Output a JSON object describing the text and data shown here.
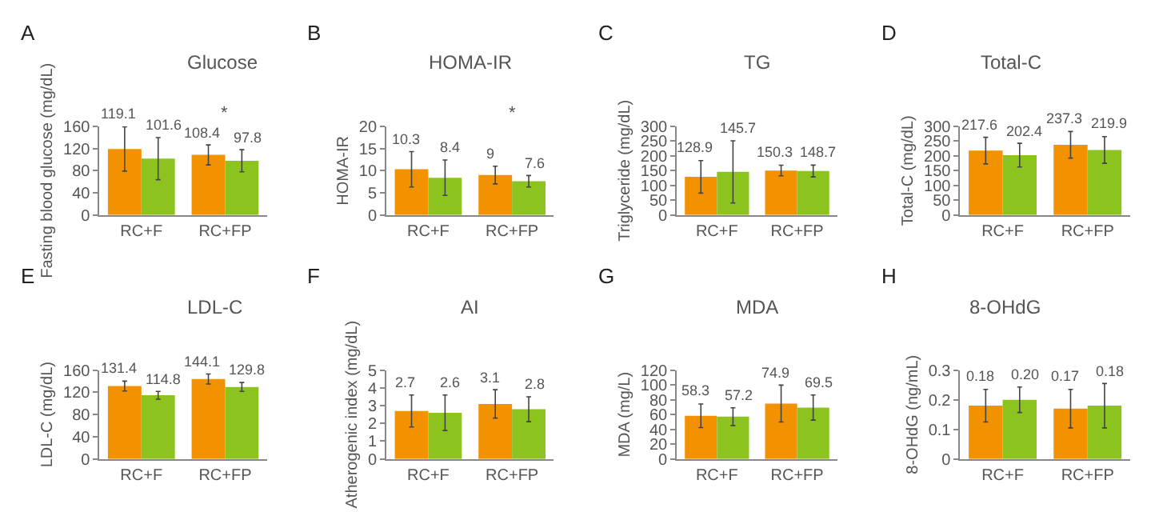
{
  "chart_data": [
    {
      "type": "bar",
      "title": "Glucose",
      "ylabel": "Fasting blood glucose (mg/dL)",
      "categories": [
        "RC+F",
        "RC+FP"
      ],
      "ylim": [
        0,
        160
      ],
      "yticks": [
        0,
        40,
        80,
        120,
        160
      ],
      "annotations": [
        "A",
        "*"
      ],
      "series": [
        {
          "color": "#f39200",
          "values": [
            119.1,
            108.4
          ],
          "errors": [
            40,
            18
          ],
          "value_labels": [
            "119.1",
            "108.4"
          ]
        },
        {
          "color": "#8cc31f",
          "values": [
            101.6,
            97.8
          ],
          "errors": [
            38,
            20
          ],
          "value_labels": [
            "101.6",
            "97.8"
          ]
        }
      ]
    },
    {
      "type": "bar",
      "title": "HOMA-IR",
      "ylabel": "HOMA-IR",
      "categories": [
        "RC+F",
        "RC+FP"
      ],
      "ylim": [
        0,
        20
      ],
      "yticks": [
        0,
        5,
        10,
        15,
        20
      ],
      "annotations": [
        "B",
        "*"
      ],
      "series": [
        {
          "color": "#f39200",
          "values": [
            10.3,
            9
          ],
          "errors": [
            4,
            2
          ],
          "value_labels": [
            "10.3",
            "9"
          ]
        },
        {
          "color": "#8cc31f",
          "values": [
            8.4,
            7.6
          ],
          "errors": [
            4,
            1.3
          ],
          "value_labels": [
            "8.4",
            "7.6"
          ]
        }
      ]
    },
    {
      "type": "bar",
      "title": "TG",
      "ylabel": "Triglyceride (mg/dL)",
      "categories": [
        "RC+F",
        "RC+FP"
      ],
      "ylim": [
        0,
        300
      ],
      "yticks": [
        0,
        50,
        100,
        150,
        200,
        250,
        300
      ],
      "annotations": [
        "C"
      ],
      "series": [
        {
          "color": "#f39200",
          "values": [
            128.9,
            150.3
          ],
          "errors": [
            55,
            18
          ],
          "value_labels": [
            "128.9",
            "150.3"
          ]
        },
        {
          "color": "#8cc31f",
          "values": [
            145.7,
            148.7
          ],
          "errors": [
            105,
            20
          ],
          "value_labels": [
            "145.7",
            "148.7"
          ]
        }
      ]
    },
    {
      "type": "bar",
      "title": "Total-C",
      "ylabel": "Total-C (mg/dL)",
      "categories": [
        "RC+F",
        "RC+FP"
      ],
      "ylim": [
        0,
        300
      ],
      "yticks": [
        0,
        50,
        100,
        150,
        200,
        250,
        300
      ],
      "annotations": [
        "D"
      ],
      "series": [
        {
          "color": "#f39200",
          "values": [
            217.6,
            237.3
          ],
          "errors": [
            45,
            45
          ],
          "value_labels": [
            "217.6",
            "237.3"
          ]
        },
        {
          "color": "#8cc31f",
          "values": [
            202.4,
            219.9
          ],
          "errors": [
            40,
            45
          ],
          "value_labels": [
            "202.4",
            "219.9"
          ]
        }
      ]
    },
    {
      "type": "bar",
      "title": "LDL-C",
      "ylabel": "LDL-C (mg/dL)",
      "categories": [
        "RC+F",
        "RC+FP"
      ],
      "ylim": [
        0,
        160
      ],
      "yticks": [
        0,
        40,
        80,
        120,
        160
      ],
      "annotations": [
        "E"
      ],
      "series": [
        {
          "color": "#f39200",
          "values": [
            131.4,
            144.1
          ],
          "errors": [
            9,
            9
          ],
          "value_labels": [
            "131.4",
            "144.1"
          ]
        },
        {
          "color": "#8cc31f",
          "values": [
            114.8,
            129.8
          ],
          "errors": [
            7,
            8
          ],
          "value_labels": [
            "114.8",
            "129.8"
          ]
        }
      ]
    },
    {
      "type": "bar",
      "title": "AI",
      "ylabel": "Atherogenic index (mg/dL)",
      "categories": [
        "RC+F",
        "RC+FP"
      ],
      "ylim": [
        0,
        5
      ],
      "yticks": [
        0,
        1,
        2,
        3,
        4,
        5
      ],
      "annotations": [
        "F"
      ],
      "series": [
        {
          "color": "#f39200",
          "values": [
            2.7,
            3.1
          ],
          "errors": [
            0.9,
            0.8
          ],
          "value_labels": [
            "2.7",
            "3.1"
          ]
        },
        {
          "color": "#8cc31f",
          "values": [
            2.6,
            2.8
          ],
          "errors": [
            1.0,
            0.7
          ],
          "value_labels": [
            "2.6",
            "2.8"
          ]
        }
      ]
    },
    {
      "type": "bar",
      "title": "MDA",
      "ylabel": "MDA (mg/L)",
      "categories": [
        "RC+F",
        "RC+FP"
      ],
      "ylim": [
        0,
        120
      ],
      "yticks": [
        0,
        20,
        40,
        60,
        80,
        100,
        120
      ],
      "annotations": [
        "G"
      ],
      "series": [
        {
          "color": "#f39200",
          "values": [
            58.3,
            74.9
          ],
          "errors": [
            16,
            25
          ],
          "value_labels": [
            "58.3",
            "74.9"
          ]
        },
        {
          "color": "#8cc31f",
          "values": [
            57.2,
            69.5
          ],
          "errors": [
            12,
            17
          ],
          "value_labels": [
            "57.2",
            "69.5"
          ]
        }
      ]
    },
    {
      "type": "bar",
      "title": "8-OHdG",
      "ylabel": "8-OHdG (ng/mL)",
      "categories": [
        "RC+F",
        "RC+FP"
      ],
      "ylim": [
        0,
        0.3
      ],
      "yticks": [
        0,
        0.1,
        0.2,
        0.3
      ],
      "annotations": [
        "H"
      ],
      "series": [
        {
          "color": "#f39200",
          "values": [
            0.18,
            0.17
          ],
          "errors": [
            0.055,
            0.065
          ],
          "value_labels": [
            "0.18",
            "0.17"
          ]
        },
        {
          "color": "#8cc31f",
          "values": [
            0.2,
            0.18
          ],
          "errors": [
            0.043,
            0.075
          ],
          "value_labels": [
            "0.20",
            "0.18"
          ]
        }
      ]
    }
  ]
}
